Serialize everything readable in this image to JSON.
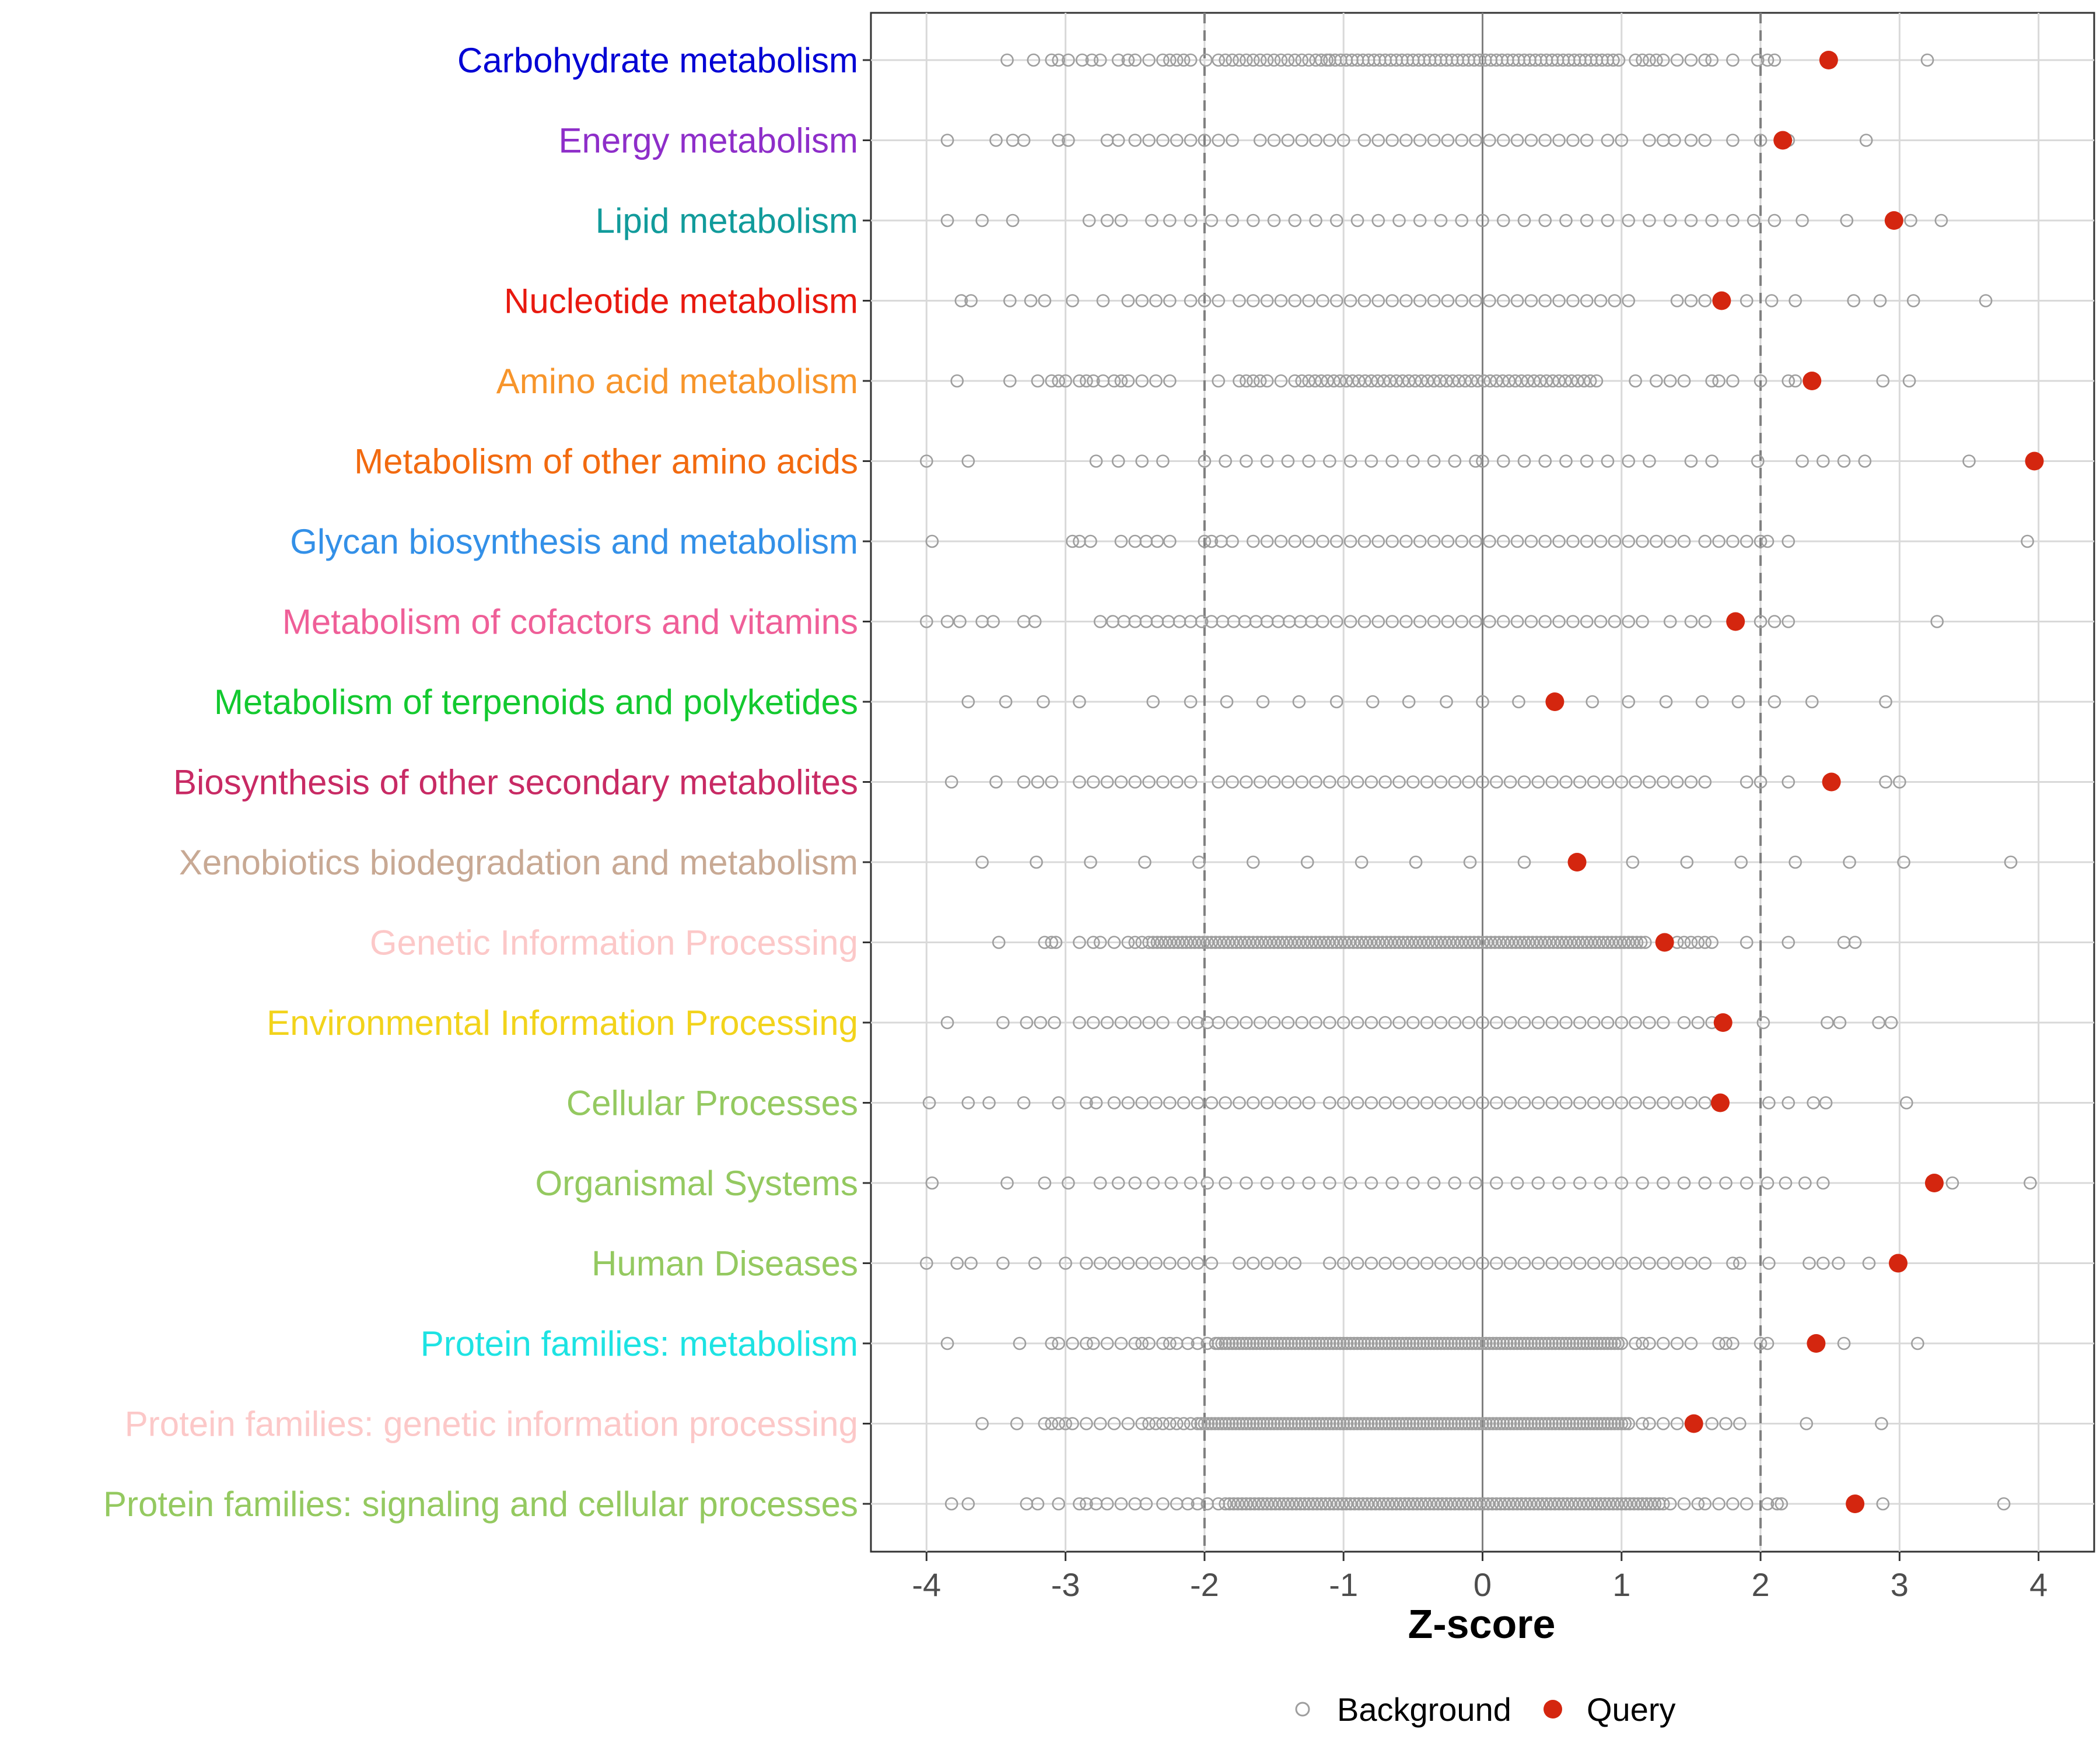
{
  "chart_data": {
    "type": "scatter",
    "xlabel": "Z-score",
    "xlim": [
      -4.4,
      4.4
    ],
    "xticks": [
      -4,
      -3,
      -2,
      -1,
      0,
      1,
      2,
      3,
      4
    ],
    "xtick_labels": [
      "-4",
      "-3",
      "-2",
      "-1",
      "0",
      "1",
      "2",
      "3",
      "4"
    ],
    "reference_lines": {
      "solid": [
        0
      ],
      "dashed": [
        -2,
        2
      ]
    },
    "colors": {
      "background": "#9e9e9e",
      "query": "#d4260f"
    },
    "legend": {
      "position": "bottom",
      "entries": [
        {
          "key": "background",
          "label": "Background"
        },
        {
          "key": "query",
          "label": "Query"
        }
      ]
    },
    "categories": [
      {
        "label": "Carbohydrate metabolism",
        "color": "#0000d4",
        "query": 2.49,
        "bg_points": [
          -3.42,
          -3.23,
          -3.1,
          -3.05,
          -2.98,
          -2.88,
          -2.81,
          -2.75,
          -2.62,
          -2.55,
          -2.5,
          -2.4,
          -2.3,
          -2.25,
          -2.2,
          -2.15,
          -2.1,
          -1.99,
          -1.9,
          -1.85,
          -1.8,
          -1.75,
          -1.7,
          -1.65,
          -1.6,
          -1.55,
          -1.5,
          -1.45,
          -1.4,
          -1.35,
          -1.3,
          -1.25,
          -1.2,
          -1.16,
          -1.12,
          1.1,
          1.15,
          1.2,
          1.25,
          1.3,
          1.4,
          1.5,
          1.6,
          1.65,
          1.8,
          1.98,
          2.05,
          2.1,
          3.2
        ],
        "bg_range": [
          -1.1,
          1.0
        ],
        "bg_range_step": 0.04
      },
      {
        "label": "Energy metabolism",
        "color": "#8e2ec9",
        "query": 2.16,
        "bg_points": [
          -3.85,
          -3.5,
          -3.38,
          -3.3,
          -3.05,
          -2.98,
          -2.7,
          -2.62,
          -2.5,
          -2.4,
          -2.3,
          -2.2,
          -2.1,
          -2.0,
          -1.9,
          -1.8,
          -1.6,
          -1.5,
          -1.4,
          -1.3,
          -1.2,
          -1.1,
          -1.0,
          -0.85,
          -0.75,
          -0.65,
          -0.55,
          -0.45,
          -0.35,
          -0.25,
          -0.15,
          -0.05,
          0.05,
          0.15,
          0.25,
          0.35,
          0.45,
          0.55,
          0.65,
          0.75,
          0.9,
          1.0,
          1.2,
          1.3,
          1.38,
          1.5,
          1.6,
          1.8,
          2.0,
          2.2,
          2.76
        ]
      },
      {
        "label": "Lipid metabolism",
        "color": "#119b9b",
        "query": 2.96,
        "bg_points": [
          -3.85,
          -3.6,
          -3.38,
          -2.83,
          -2.7,
          -2.6,
          -2.38,
          -2.25,
          -2.1,
          -1.95,
          -1.8,
          -1.65,
          -1.5,
          -1.35,
          -1.2,
          -1.05,
          -0.9,
          -0.75,
          -0.6,
          -0.45,
          -0.3,
          -0.15,
          0.0,
          0.15,
          0.3,
          0.45,
          0.6,
          0.75,
          0.9,
          1.05,
          1.2,
          1.35,
          1.5,
          1.65,
          1.8,
          1.95,
          2.1,
          2.3,
          2.62,
          3.08,
          3.3
        ]
      },
      {
        "label": "Nucleotide metabolism",
        "color": "#e8190f",
        "query": 1.72,
        "bg_points": [
          -3.75,
          -3.68,
          -3.4,
          -3.25,
          -3.15,
          -2.95,
          -2.73,
          -2.55,
          -2.45,
          -2.35,
          -2.25,
          -2.1,
          -2.0,
          -1.9,
          -1.75,
          -1.65,
          -1.55,
          -1.45,
          -1.35,
          -1.25,
          -1.15,
          -1.05,
          -0.95,
          -0.85,
          -0.75,
          -0.65,
          -0.55,
          -0.45,
          -0.35,
          -0.25,
          -0.15,
          -0.05,
          0.05,
          0.15,
          0.25,
          0.35,
          0.45,
          0.55,
          0.65,
          0.75,
          0.85,
          0.95,
          1.05,
          1.4,
          1.5,
          1.6,
          1.9,
          2.08,
          2.25,
          2.67,
          2.86,
          3.1,
          3.62
        ]
      },
      {
        "label": "Amino acid metabolism",
        "color": "#f7952b",
        "query": 2.37,
        "bg_points": [
          -3.78,
          -3.4,
          -3.2,
          -3.1,
          -3.05,
          -3.0,
          -2.9,
          -2.85,
          -2.8,
          -2.73,
          -2.65,
          -2.6,
          -2.55,
          -2.45,
          -2.35,
          -2.25,
          -1.9,
          -1.75,
          -1.7,
          -1.65,
          -1.6,
          -1.55,
          -1.45,
          -1.35,
          -1.3,
          1.1,
          1.25,
          1.35,
          1.45,
          1.65,
          1.7,
          1.8,
          2.0,
          2.2,
          2.25,
          2.88,
          3.07
        ],
        "bg_range": [
          -1.25,
          0.82
        ],
        "bg_range_step": 0.045
      },
      {
        "label": "Metabolism of other amino acids",
        "color": "#f26a0f",
        "query": 3.97,
        "bg_points": [
          -4.0,
          -3.7,
          -2.78,
          -2.62,
          -2.45,
          -2.3,
          -2.0,
          -1.85,
          -1.7,
          -1.55,
          -1.4,
          -1.25,
          -1.1,
          -0.95,
          -0.8,
          -0.65,
          -0.5,
          -0.35,
          -0.2,
          -0.05,
          0.0,
          0.15,
          0.3,
          0.45,
          0.6,
          0.75,
          0.9,
          1.05,
          1.2,
          1.5,
          1.65,
          1.98,
          2.3,
          2.45,
          2.6,
          2.75,
          3.5
        ]
      },
      {
        "label": "Glycan biosynthesis and metabolism",
        "color": "#3390e8",
        "query": null,
        "bg_points": [
          -3.96,
          -2.95,
          -2.9,
          -2.82,
          -2.6,
          -2.5,
          -2.42,
          -2.34,
          -2.25,
          -2.0,
          -1.95,
          -1.88,
          -1.8,
          -1.65,
          -1.55,
          -1.45,
          -1.35,
          -1.25,
          -1.15,
          -1.05,
          -0.95,
          -0.85,
          -0.75,
          -0.65,
          -0.55,
          -0.45,
          -0.35,
          -0.25,
          -0.15,
          -0.05,
          0.05,
          0.15,
          0.25,
          0.35,
          0.45,
          0.55,
          0.65,
          0.75,
          0.85,
          0.95,
          1.05,
          1.15,
          1.25,
          1.35,
          1.45,
          1.6,
          1.7,
          1.8,
          1.9,
          2.0,
          2.05,
          2.2,
          3.92
        ]
      },
      {
        "label": "Metabolism of cofactors and vitamins",
        "color": "#ef5f98",
        "query": 1.82,
        "bg_points": [
          -4.0,
          -3.85,
          -3.76,
          -3.6,
          -3.52,
          -3.3,
          -3.22,
          -2.75,
          -2.66,
          -2.58,
          -2.5,
          -2.42,
          -2.34,
          -2.26,
          -2.18,
          -2.1,
          -2.02,
          -1.95,
          -1.87,
          -1.79,
          -1.71,
          -1.63,
          -1.55,
          -1.47,
          -1.39,
          -1.31,
          -1.23,
          -1.15,
          -1.05,
          -0.95,
          -0.85,
          -0.75,
          -0.65,
          -0.55,
          -0.45,
          -0.35,
          -0.25,
          -0.15,
          -0.05,
          0.05,
          0.15,
          0.25,
          0.35,
          0.45,
          0.55,
          0.65,
          0.75,
          0.85,
          0.95,
          1.05,
          1.15,
          1.35,
          1.5,
          1.6,
          2.0,
          2.1,
          2.2,
          3.27
        ]
      },
      {
        "label": "Metabolism of terpenoids and polyketides",
        "color": "#13c92f",
        "query": 0.52,
        "bg_points": [
          -3.7,
          -3.43,
          -3.16,
          -2.9,
          -2.37,
          -2.1,
          -1.84,
          -1.58,
          -1.32,
          -1.05,
          -0.79,
          -0.53,
          -0.26,
          0.0,
          0.26,
          0.79,
          1.05,
          1.32,
          1.58,
          1.84,
          2.1,
          2.37,
          2.9
        ]
      },
      {
        "label": "Biosynthesis of other secondary metabolites",
        "color": "#c82a64",
        "query": 2.51,
        "bg_points": [
          -3.82,
          -3.5,
          -3.3,
          -3.2,
          -3.1,
          -2.9,
          -2.8,
          -2.7,
          -2.6,
          -2.5,
          -2.4,
          -2.3,
          -2.2,
          -2.1,
          -1.9,
          -1.8,
          -1.7,
          -1.6,
          -1.5,
          -1.4,
          -1.3,
          -1.2,
          -1.1,
          -1.0,
          -0.9,
          -0.8,
          -0.7,
          -0.6,
          -0.5,
          -0.4,
          -0.3,
          -0.2,
          -0.1,
          0.0,
          0.1,
          0.2,
          0.3,
          0.4,
          0.5,
          0.6,
          0.7,
          0.8,
          0.9,
          1.0,
          1.1,
          1.2,
          1.3,
          1.4,
          1.5,
          1.6,
          1.9,
          2.0,
          2.2,
          2.9,
          3.0
        ]
      },
      {
        "label": "Xenobiotics biodegradation and metabolism",
        "color": "#c8a994",
        "query": 0.68,
        "bg_points": [
          -3.6,
          -3.21,
          -2.82,
          -2.43,
          -2.04,
          -1.65,
          -1.26,
          -0.87,
          -0.48,
          -0.09,
          0.3,
          1.08,
          1.47,
          1.86,
          2.25,
          2.64,
          3.03,
          3.8
        ]
      },
      {
        "label": "Genetic Information Processing",
        "color": "#fcc8c8",
        "query": 1.31,
        "bg_points": [
          -3.48,
          -3.15,
          -3.1,
          -3.07,
          -2.9,
          -2.8,
          -2.75,
          -2.65,
          -2.55,
          -2.5,
          -2.45,
          1.4,
          1.45,
          1.5,
          1.55,
          1.6,
          1.65,
          1.9,
          2.2,
          2.6,
          2.68
        ],
        "bg_range": [
          -2.4,
          1.17
        ],
        "bg_range_step": 0.03
      },
      {
        "label": "Environmental Information Processing",
        "color": "#f2d31b",
        "query": 1.73,
        "bg_points": [
          -3.85,
          -3.45,
          -3.28,
          -3.18,
          -3.08,
          -2.9,
          -2.8,
          -2.7,
          -2.6,
          -2.5,
          -2.4,
          -2.3,
          -2.15,
          -2.05,
          -1.98,
          -1.9,
          -1.8,
          -1.7,
          -1.6,
          -1.5,
          -1.4,
          -1.3,
          -1.2,
          -1.1,
          -1.0,
          -0.9,
          -0.8,
          -0.7,
          -0.6,
          -0.5,
          -0.4,
          -0.3,
          -0.2,
          -0.1,
          0.0,
          0.1,
          0.2,
          0.3,
          0.4,
          0.5,
          0.6,
          0.7,
          0.8,
          0.9,
          1.0,
          1.1,
          1.2,
          1.3,
          1.45,
          1.55,
          1.65,
          2.02,
          2.48,
          2.57,
          2.85,
          2.94
        ]
      },
      {
        "label": "Cellular Processes",
        "color": "#94c960",
        "query": 1.71,
        "bg_points": [
          -3.98,
          -3.7,
          -3.55,
          -3.3,
          -3.05,
          -2.85,
          -2.78,
          -2.65,
          -2.55,
          -2.45,
          -2.35,
          -2.25,
          -2.15,
          -2.05,
          -1.95,
          -1.85,
          -1.75,
          -1.65,
          -1.55,
          -1.45,
          -1.35,
          -1.25,
          -1.1,
          -1.0,
          -0.9,
          -0.8,
          -0.7,
          -0.6,
          -0.5,
          -0.4,
          -0.3,
          -0.2,
          -0.1,
          0.0,
          0.1,
          0.2,
          0.3,
          0.4,
          0.5,
          0.6,
          0.7,
          0.8,
          0.9,
          1.0,
          1.1,
          1.2,
          1.3,
          1.4,
          1.5,
          1.6,
          2.06,
          2.2,
          2.38,
          2.47,
          3.05
        ]
      },
      {
        "label": "Organismal Systems",
        "color": "#94c960",
        "query": 3.25,
        "bg_points": [
          -3.96,
          -3.42,
          -3.15,
          -2.98,
          -2.75,
          -2.62,
          -2.5,
          -2.37,
          -2.24,
          -2.1,
          -1.98,
          -1.85,
          -1.7,
          -1.55,
          -1.4,
          -1.25,
          -1.1,
          -0.95,
          -0.8,
          -0.65,
          -0.5,
          -0.35,
          -0.2,
          -0.05,
          0.1,
          0.25,
          0.4,
          0.55,
          0.7,
          0.85,
          1.0,
          1.15,
          1.3,
          1.45,
          1.6,
          1.75,
          1.9,
          2.05,
          2.18,
          2.32,
          2.45,
          3.38,
          3.94
        ]
      },
      {
        "label": "Human Diseases",
        "color": "#94c960",
        "query": 2.99,
        "bg_points": [
          -4.0,
          -3.78,
          -3.68,
          -3.45,
          -3.22,
          -3.0,
          -2.85,
          -2.75,
          -2.65,
          -2.55,
          -2.45,
          -2.35,
          -2.25,
          -2.15,
          -2.05,
          -1.95,
          -1.75,
          -1.65,
          -1.55,
          -1.45,
          -1.35,
          -1.1,
          -1.0,
          -0.9,
          -0.8,
          -0.7,
          -0.6,
          -0.5,
          -0.4,
          -0.3,
          -0.2,
          -0.1,
          0.0,
          0.1,
          0.2,
          0.3,
          0.4,
          0.5,
          0.6,
          0.7,
          0.8,
          0.9,
          1.0,
          1.1,
          1.2,
          1.3,
          1.4,
          1.5,
          1.6,
          1.8,
          1.85,
          2.06,
          2.35,
          2.45,
          2.56,
          2.78
        ]
      },
      {
        "label": "Protein families: metabolism",
        "color": "#1de3e3",
        "query": 2.4,
        "bg_points": [
          -3.85,
          -3.33,
          -3.1,
          -3.05,
          -2.95,
          -2.85,
          -2.8,
          -2.7,
          -2.6,
          -2.5,
          -2.45,
          -2.4,
          -2.3,
          -2.25,
          -2.2,
          -2.12,
          -2.05,
          -1.98,
          -1.92,
          1.1,
          1.15,
          1.2,
          1.3,
          1.4,
          1.5,
          1.7,
          1.75,
          1.8,
          2.0,
          2.05,
          2.6,
          3.13
        ],
        "bg_range": [
          -1.9,
          1.0
        ],
        "bg_range_step": 0.025
      },
      {
        "label": "Protein families: genetic information processing",
        "color": "#fcc8c8",
        "query": 1.52,
        "bg_points": [
          -3.6,
          -3.35,
          -3.15,
          -3.1,
          -3.05,
          -3.0,
          -2.95,
          -2.85,
          -2.75,
          -2.65,
          -2.55,
          -2.45,
          -2.4,
          -2.35,
          -2.3,
          -2.25,
          -2.2,
          -2.15,
          -2.1,
          1.15,
          1.2,
          1.3,
          1.4,
          1.65,
          1.75,
          1.85,
          2.33,
          2.87
        ],
        "bg_range": [
          -2.05,
          1.05
        ],
        "bg_range_step": 0.025
      },
      {
        "label": "Protein families: signaling and cellular processes",
        "color": "#94c960",
        "query": 2.68,
        "bg_points": [
          -3.82,
          -3.7,
          -3.28,
          -3.2,
          -3.05,
          -2.9,
          -2.85,
          -2.78,
          -2.7,
          -2.6,
          -2.5,
          -2.42,
          -2.3,
          -2.2,
          -2.12,
          -2.05,
          -1.98,
          -1.9,
          1.35,
          1.45,
          1.55,
          1.6,
          1.7,
          1.8,
          1.9,
          2.05,
          2.12,
          2.15,
          2.88,
          3.75
        ],
        "bg_range": [
          -1.85,
          1.3
        ],
        "bg_range_step": 0.03
      }
    ]
  }
}
